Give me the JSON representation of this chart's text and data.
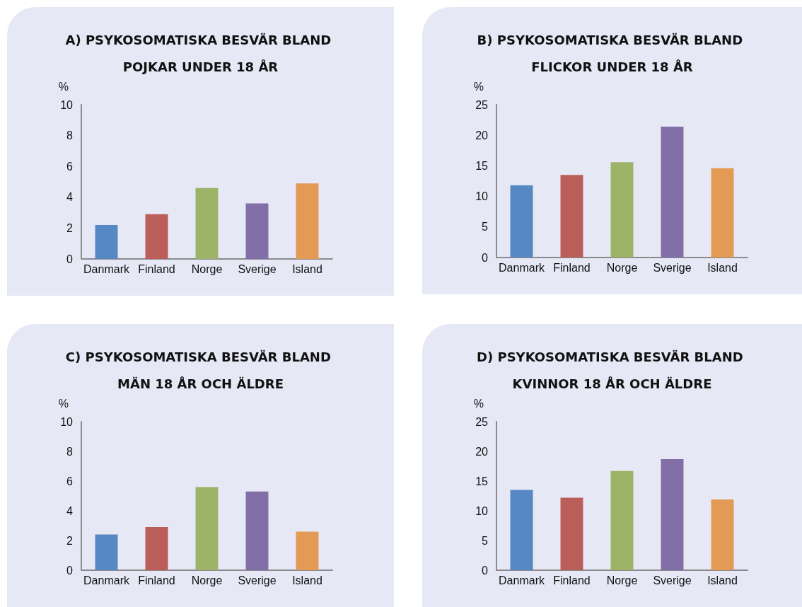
{
  "chart_data": [
    {
      "type": "bar",
      "title": "A) PSYKOSOMATISKA BESVÄR BLAND POJKAR UNDER 18 ÅR",
      "ylabel": "%",
      "categories": [
        "Danmark",
        "Finland",
        "Norge",
        "Sverige",
        "Island"
      ],
      "values": [
        2.2,
        2.9,
        4.6,
        3.6,
        4.9
      ],
      "colors": [
        "#5689c3",
        "#bb5e5a",
        "#9cb368",
        "#836fa8",
        "#e39a55"
      ],
      "ylim": [
        0,
        10
      ],
      "yticks": [
        0,
        2,
        4,
        6,
        8,
        10
      ]
    },
    {
      "type": "bar",
      "title": "B) PSYKOSOMATISKA BESVÄR BLAND FLICKOR UNDER 18 ÅR",
      "ylabel": "%",
      "categories": [
        "Danmark",
        "Finland",
        "Norge",
        "Sverige",
        "Island"
      ],
      "values": [
        11.8,
        13.5,
        15.6,
        21.4,
        14.6
      ],
      "colors": [
        "#5689c3",
        "#bb5e5a",
        "#9cb368",
        "#836fa8",
        "#e39a55"
      ],
      "ylim": [
        0,
        25
      ],
      "yticks": [
        0,
        5,
        10,
        15,
        20,
        25
      ]
    },
    {
      "type": "bar",
      "title": "C) PSYKOSOMATISKA BESVÄR BLAND MÄN 18 ÅR OCH ÄLDRE",
      "ylabel": "%",
      "categories": [
        "Danmark",
        "Finland",
        "Norge",
        "Sverige",
        "Island"
      ],
      "values": [
        2.4,
        2.9,
        5.6,
        5.3,
        2.6
      ],
      "colors": [
        "#5689c3",
        "#bb5e5a",
        "#9cb368",
        "#836fa8",
        "#e39a55"
      ],
      "ylim": [
        0,
        10
      ],
      "yticks": [
        0,
        2,
        4,
        6,
        8,
        10
      ]
    },
    {
      "type": "bar",
      "title": "D) PSYKOSOMATISKA BESVÄR BLAND KVINNOR 18 ÅR OCH ÄLDRE",
      "ylabel": "%",
      "categories": [
        "Danmark",
        "Finland",
        "Norge",
        "Sverige",
        "Island"
      ],
      "values": [
        13.5,
        12.2,
        16.7,
        18.7,
        11.9
      ],
      "colors": [
        "#5689c3",
        "#bb5e5a",
        "#9cb368",
        "#836fa8",
        "#e39a55"
      ],
      "ylim": [
        0,
        25
      ],
      "yticks": [
        0,
        5,
        10,
        15,
        20,
        25
      ]
    }
  ]
}
